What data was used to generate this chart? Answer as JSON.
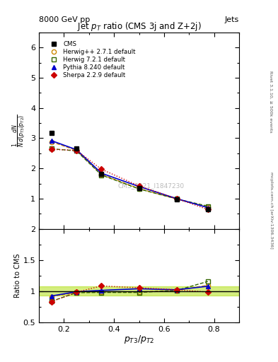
{
  "title": "Jet $p_T$ ratio (CMS 3j and Z+2j)",
  "header_left": "8000 GeV pp",
  "header_right": "Jets",
  "watermark": "CMS_2021_I1847230",
  "right_label_top": "Rivet 3.1.10, ≥ 500k events",
  "right_label_bottom": "mcplots.cern.ch [arXiv:1306.3436]",
  "xlabel": "$p_{T3}/p_{T2}$",
  "ylabel_main": "$\\frac{1}{N}\\frac{dN}{d(p_{T3}/p_{T2})}$",
  "ylabel_ratio": "Ratio to CMS",
  "x_data": [
    0.15,
    0.25,
    0.35,
    0.5,
    0.65,
    0.775
  ],
  "cms_y": [
    3.17,
    2.65,
    1.82,
    1.35,
    0.98,
    0.65
  ],
  "herwig271_y": [
    2.88,
    2.6,
    1.8,
    1.33,
    0.99,
    0.71
  ],
  "herwig721_y": [
    2.65,
    2.58,
    1.78,
    1.32,
    0.99,
    0.75
  ],
  "pythia_y": [
    2.92,
    2.62,
    1.84,
    1.4,
    1.0,
    0.7
  ],
  "sherpa_y": [
    2.63,
    2.6,
    1.97,
    1.42,
    1.0,
    0.64
  ],
  "cms_color": "#000000",
  "herwig271_color": "#cc8800",
  "herwig721_color": "#336600",
  "pythia_color": "#0000cc",
  "sherpa_color": "#cc0000",
  "band_color": "#aadd00",
  "band_alpha": 0.5,
  "xlim": [
    0.1,
    0.9
  ],
  "ylim_main": [
    0.0,
    6.5
  ],
  "ylim_ratio": [
    0.5,
    2.0
  ],
  "yticks_main": [
    1,
    2,
    3,
    4,
    5,
    6
  ],
  "yticks_ratio": [
    0.5,
    1.0,
    1.5,
    2.0
  ],
  "xticks": [
    0.2,
    0.4,
    0.6,
    0.8
  ],
  "ratio_band_lo": 0.93,
  "ratio_band_hi": 1.07
}
